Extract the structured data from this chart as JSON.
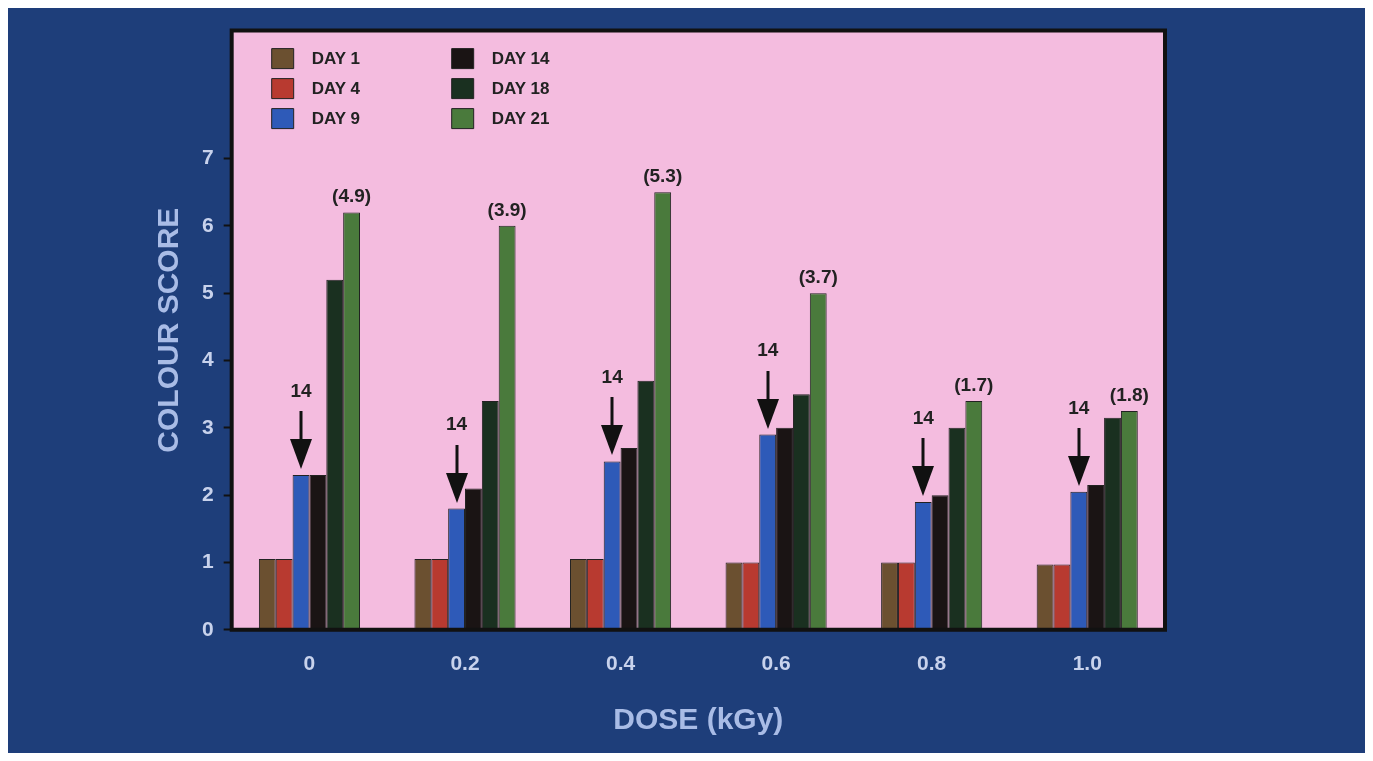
{
  "chart_data": {
    "type": "bar",
    "xlabel": "DOSE (kGy)",
    "ylabel": "COLOUR SCORE",
    "categories": [
      "0",
      "0.2",
      "0.4",
      "0.6",
      "0.8",
      "1.0"
    ],
    "series": [
      {
        "name": "DAY 1",
        "color": "#6b5030",
        "values": [
          1.05,
          1.05,
          1.05,
          1.0,
          1.0,
          0.97
        ]
      },
      {
        "name": "DAY 4",
        "color": "#b83a30",
        "values": [
          1.05,
          1.05,
          1.05,
          1.0,
          1.0,
          0.97
        ]
      },
      {
        "name": "DAY 9",
        "color": "#2e5ab8",
        "values": [
          2.3,
          1.8,
          2.5,
          2.9,
          1.9,
          2.05
        ]
      },
      {
        "name": "DAY 14",
        "color": "#1a1414",
        "values": [
          2.3,
          2.1,
          2.7,
          3.0,
          2.0,
          2.15
        ]
      },
      {
        "name": "DAY 18",
        "color": "#1a3020",
        "values": [
          5.2,
          3.4,
          3.7,
          3.5,
          3.0,
          3.15
        ]
      },
      {
        "name": "DAY 21",
        "color": "#4a7a3c",
        "values": [
          6.2,
          6.0,
          6.5,
          5.0,
          3.4,
          3.25
        ]
      }
    ],
    "ylim": [
      0,
      8.9
    ],
    "yticks": [
      0,
      1,
      2,
      3,
      4,
      5,
      6,
      7
    ],
    "legend": "top left",
    "annotations": [
      "14",
      "14",
      "14",
      "14",
      "14",
      "14",
      "(4.9)",
      "(3.9)",
      "(5.3)",
      "(3.7)",
      "(1.7)",
      "(1.8)"
    ]
  }
}
